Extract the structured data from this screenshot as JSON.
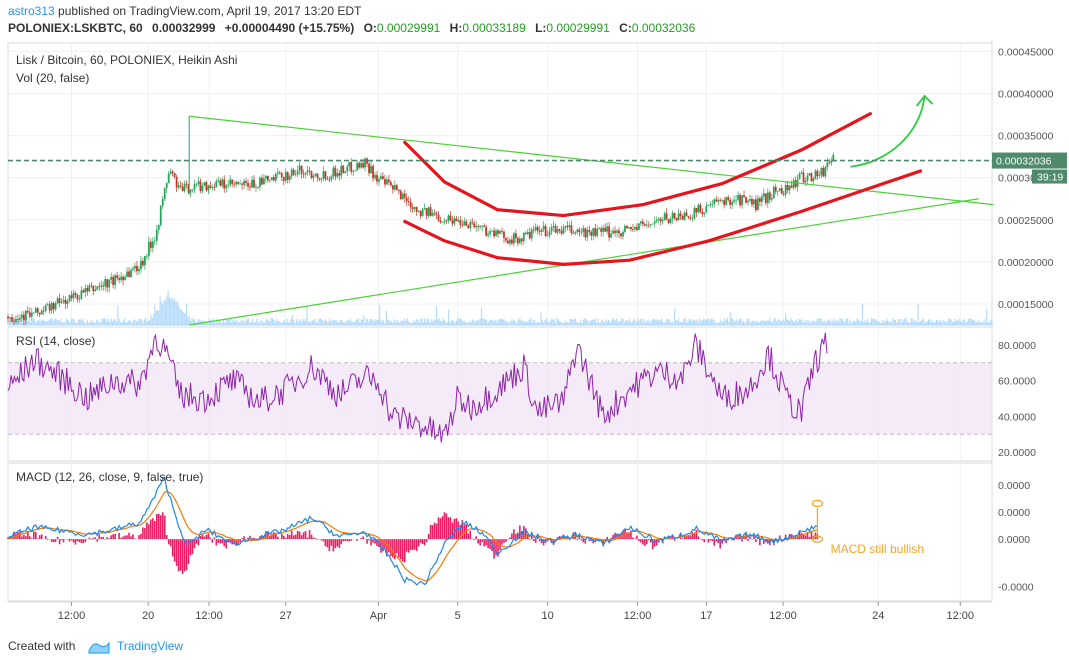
{
  "header": {
    "user": "astro313",
    "published": "published on TradingView.com, April 19, 2017 13:20 EDT",
    "symbol": "POLONIEX:LSKBTC, 60",
    "last": "0.00032999",
    "change": "+0.00004490 (+15.75%)",
    "o_label": "O:",
    "o": "0.00029991",
    "h_label": "H:",
    "h": "0.00033189",
    "l_label": "L:",
    "l": "0.00029991",
    "c_label": "C:",
    "c": "0.00032036"
  },
  "footer": {
    "created_with": "Created with",
    "brand": "TradingView"
  },
  "colors": {
    "green": "#22a022",
    "red": "#e8141d",
    "trend": "#4cd137",
    "rsi": "#8e24aa",
    "macd": "#1e88e5",
    "signal": "#f57c00",
    "hist": "#e91e63",
    "volume": "#90caf9",
    "last_price": "#4f8a6a",
    "annotation": "#f5a623",
    "grid": "#eef0f3"
  },
  "chart_data": [
    {
      "type": "candlestick",
      "title": "Lisk / Bitcoin, 60, POLONIEX, Heikin Ashi",
      "subtitle": "Vol (20, false)",
      "yticks": [
        "0.00015000",
        "0.00020000",
        "0.00025000",
        "0.00030000",
        "0.00035000",
        "0.00040000",
        "0.00045000"
      ],
      "ylim": [
        0.000125,
        0.00046
      ],
      "last_price_label": "0.00032036",
      "countdown_label": "39:19",
      "x_ticks": [
        "12:00",
        "20",
        "12:00",
        "27",
        "Apr",
        "5",
        "10",
        "12:00",
        "17",
        "12:00",
        "24",
        "12:00"
      ],
      "x_tick_index": [
        48,
        106,
        152,
        210,
        280,
        340,
        408,
        476,
        528,
        586,
        658,
        720
      ],
      "x_count": 745,
      "price_path": [
        [
          0,
          0.000135
        ],
        [
          20,
          0.000138
        ],
        [
          40,
          0.000152
        ],
        [
          60,
          0.000165
        ],
        [
          80,
          0.000178
        ],
        [
          100,
          0.000196
        ],
        [
          112,
          0.000235
        ],
        [
          118,
          0.00028
        ],
        [
          122,
          0.00031
        ],
        [
          130,
          0.000285
        ],
        [
          140,
          0.00029
        ],
        [
          160,
          0.000292
        ],
        [
          180,
          0.00029
        ],
        [
          200,
          0.000298
        ],
        [
          220,
          0.000308
        ],
        [
          240,
          0.000303
        ],
        [
          258,
          0.000312
        ],
        [
          270,
          0.000318
        ],
        [
          280,
          0.000298
        ],
        [
          295,
          0.000283
        ],
        [
          310,
          0.000262
        ],
        [
          330,
          0.000252
        ],
        [
          350,
          0.000246
        ],
        [
          370,
          0.000232
        ],
        [
          385,
          0.000226
        ],
        [
          400,
          0.000236
        ],
        [
          420,
          0.000238
        ],
        [
          440,
          0.000234
        ],
        [
          460,
          0.000236
        ],
        [
          480,
          0.000243
        ],
        [
          500,
          0.000253
        ],
        [
          515,
          0.000256
        ],
        [
          530,
          0.000266
        ],
        [
          550,
          0.000276
        ],
        [
          565,
          0.000268
        ],
        [
          580,
          0.000284
        ],
        [
          590,
          0.000288
        ],
        [
          600,
          0.0003
        ],
        [
          615,
          0.000305
        ],
        [
          625,
          0.000328
        ]
      ],
      "red_curves": {
        "upper": [
          [
            300,
            0.000342
          ],
          [
            330,
            0.000295
          ],
          [
            370,
            0.000262
          ],
          [
            420,
            0.000255
          ],
          [
            480,
            0.000268
          ],
          [
            540,
            0.000293
          ],
          [
            600,
            0.000333
          ],
          [
            652,
            0.000376
          ]
        ],
        "lower": [
          [
            300,
            0.000248
          ],
          [
            330,
            0.000225
          ],
          [
            370,
            0.000205
          ],
          [
            420,
            0.000197
          ],
          [
            470,
            0.000202
          ],
          [
            530,
            0.000225
          ],
          [
            600,
            0.00026
          ],
          [
            690,
            0.000308
          ]
        ]
      },
      "trendlines": [
        {
          "from": [
            137,
            0.000373
          ],
          "to": [
            745,
            0.000268
          ]
        },
        {
          "from": [
            137,
            0.000125
          ],
          "to": [
            734,
            0.000275
          ]
        }
      ],
      "arrow": {
        "points": [
          [
            637,
            0.000313
          ],
          [
            665,
            0.000318
          ],
          [
            690,
            0.000352
          ],
          [
            693,
            0.000397
          ]
        ]
      }
    },
    {
      "type": "line",
      "title": "RSI (14, close)",
      "yticks": [
        "20.0000",
        "40.0000",
        "60.0000",
        "80.0000"
      ],
      "ylim": [
        15,
        90
      ],
      "band": [
        30,
        70
      ],
      "path": [
        [
          0,
          55
        ],
        [
          20,
          72
        ],
        [
          40,
          62
        ],
        [
          60,
          50
        ],
        [
          80,
          60
        ],
        [
          100,
          58
        ],
        [
          112,
          85
        ],
        [
          120,
          75
        ],
        [
          130,
          52
        ],
        [
          150,
          50
        ],
        [
          170,
          60
        ],
        [
          190,
          48
        ],
        [
          210,
          55
        ],
        [
          230,
          68
        ],
        [
          250,
          52
        ],
        [
          270,
          62
        ],
        [
          280,
          60
        ],
        [
          290,
          40
        ],
        [
          310,
          36
        ],
        [
          330,
          28
        ],
        [
          340,
          50
        ],
        [
          350,
          45
        ],
        [
          370,
          55
        ],
        [
          390,
          68
        ],
        [
          400,
          42
        ],
        [
          420,
          48
        ],
        [
          430,
          80
        ],
        [
          450,
          40
        ],
        [
          470,
          55
        ],
        [
          490,
          65
        ],
        [
          510,
          62
        ],
        [
          520,
          80
        ],
        [
          540,
          50
        ],
        [
          560,
          55
        ],
        [
          575,
          75
        ],
        [
          590,
          48
        ],
        [
          600,
          42
        ],
        [
          610,
          70
        ],
        [
          620,
          82
        ]
      ]
    },
    {
      "type": "line",
      "title": "MACD (12, 26, close, 9, false, true)",
      "yticks": [
        "-0.0000",
        "0.0000",
        "0.0000",
        "0.0000"
      ],
      "ylim": [
        -1.3,
        1.6
      ],
      "annotation": "MACD still bullish",
      "macd_path": [
        [
          0,
          0.05
        ],
        [
          20,
          0.25
        ],
        [
          40,
          0.18
        ],
        [
          60,
          0.1
        ],
        [
          80,
          0.2
        ],
        [
          100,
          0.35
        ],
        [
          112,
          0.95
        ],
        [
          118,
          1.3
        ],
        [
          126,
          0.55
        ],
        [
          135,
          -0.15
        ],
        [
          150,
          0.2
        ],
        [
          170,
          -0.1
        ],
        [
          190,
          0.05
        ],
        [
          210,
          0.2
        ],
        [
          230,
          0.45
        ],
        [
          250,
          0.05
        ],
        [
          270,
          0.15
        ],
        [
          285,
          -0.25
        ],
        [
          300,
          -0.85
        ],
        [
          315,
          -0.95
        ],
        [
          330,
          -0.1
        ],
        [
          345,
          0.35
        ],
        [
          360,
          0.1
        ],
        [
          370,
          -0.3
        ],
        [
          390,
          0.15
        ],
        [
          410,
          -0.05
        ],
        [
          430,
          0.1
        ],
        [
          450,
          -0.1
        ],
        [
          470,
          0.25
        ],
        [
          490,
          -0.05
        ],
        [
          510,
          0.1
        ],
        [
          520,
          0.22
        ],
        [
          540,
          -0.05
        ],
        [
          560,
          0.1
        ],
        [
          580,
          -0.05
        ],
        [
          600,
          0.15
        ],
        [
          612,
          0.28
        ]
      ]
    }
  ]
}
